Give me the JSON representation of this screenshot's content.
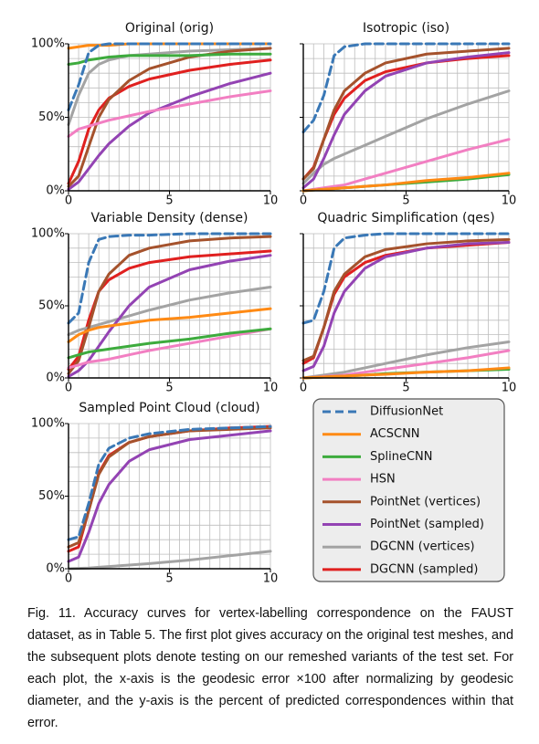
{
  "chart_data": [
    {
      "type": "line",
      "title": "Original (orig)",
      "x": [
        0,
        0.5,
        1,
        1.5,
        2,
        3,
        4,
        6,
        8,
        10
      ],
      "xlim": [
        0,
        10
      ],
      "xticks": [
        0,
        5,
        10
      ],
      "ylim": [
        0,
        100
      ],
      "yticks": [
        {
          "value": 0,
          "label": "0%"
        },
        {
          "value": 50,
          "label": "50%"
        },
        {
          "value": 100,
          "label": "100%"
        }
      ],
      "grid": true,
      "minor_grid": {
        "x": 0.5,
        "y": 10
      },
      "series": [
        {
          "name": "DiffusionNet",
          "color": "#3a78b6",
          "dash": true,
          "values": [
            55,
            72,
            94,
            99,
            100,
            100,
            100,
            100,
            100,
            100
          ]
        },
        {
          "name": "ACSCNN",
          "color": "#ff8a14",
          "values": [
            97,
            98,
            99,
            99,
            99,
            100,
            100,
            100,
            100,
            100
          ]
        },
        {
          "name": "SplineCNN",
          "color": "#3dab3d",
          "values": [
            86,
            87,
            89,
            90,
            91,
            92,
            92,
            92,
            93,
            93
          ]
        },
        {
          "name": "HSN",
          "color": "#f27fc2",
          "values": [
            37,
            42,
            44,
            46,
            48,
            51,
            54,
            59,
            64,
            68
          ]
        },
        {
          "name": "PointNet (vertices)",
          "color": "#a5522c",
          "values": [
            3,
            10,
            30,
            50,
            62,
            75,
            83,
            91,
            95,
            97
          ]
        },
        {
          "name": "PointNet (sampled)",
          "color": "#9343b3",
          "values": [
            1,
            6,
            15,
            24,
            32,
            44,
            53,
            64,
            73,
            80
          ]
        },
        {
          "name": "DGCNN (vertices)",
          "color": "#a3a3a3",
          "values": [
            45,
            65,
            80,
            86,
            89,
            92,
            93,
            95,
            96,
            97
          ]
        },
        {
          "name": "DGCNN (sampled)",
          "color": "#e0201f",
          "values": [
            5,
            20,
            42,
            55,
            63,
            71,
            76,
            82,
            86,
            89
          ]
        }
      ]
    },
    {
      "type": "line",
      "title": "Isotropic (iso)",
      "x": [
        0,
        0.5,
        1,
        1.5,
        2,
        3,
        4,
        6,
        8,
        10
      ],
      "xlim": [
        0,
        10
      ],
      "xticks": [
        0,
        5,
        10
      ],
      "ylim": [
        0,
        100
      ],
      "yticks": [
        0,
        50,
        100
      ],
      "grid": true,
      "minor_grid": {
        "x": 0.5,
        "y": 10
      },
      "ytick_labels": false,
      "series": [
        {
          "name": "DiffusionNet",
          "color": "#3a78b6",
          "dash": true,
          "values": [
            40,
            48,
            65,
            92,
            98,
            100,
            100,
            100,
            100,
            100
          ]
        },
        {
          "name": "ACSCNN",
          "color": "#ff8a14",
          "values": [
            0,
            0.5,
            1,
            1.5,
            2,
            3,
            4,
            7,
            9,
            12
          ]
        },
        {
          "name": "SplineCNN",
          "color": "#3dab3d",
          "values": [
            0,
            0.5,
            1,
            1.5,
            2,
            3,
            4,
            6,
            8,
            11
          ]
        },
        {
          "name": "HSN",
          "color": "#f27fc2",
          "values": [
            0,
            1,
            2,
            3,
            4,
            8,
            12,
            20,
            28,
            35
          ]
        },
        {
          "name": "PointNet (vertices)",
          "color": "#a5522c",
          "values": [
            8,
            15,
            35,
            55,
            68,
            80,
            87,
            93,
            95,
            97
          ]
        },
        {
          "name": "PointNet (sampled)",
          "color": "#9343b3",
          "values": [
            2,
            8,
            22,
            38,
            52,
            68,
            78,
            87,
            91,
            94
          ]
        },
        {
          "name": "DGCNN (vertices)",
          "color": "#a3a3a3",
          "values": [
            5,
            12,
            18,
            22,
            25,
            31,
            37,
            49,
            59,
            68
          ]
        },
        {
          "name": "DGCNN (sampled)",
          "color": "#e0201f",
          "values": [
            8,
            16,
            35,
            52,
            63,
            75,
            81,
            87,
            90,
            92
          ]
        }
      ]
    },
    {
      "type": "line",
      "title": "Variable Density (dense)",
      "x": [
        0,
        0.5,
        1,
        1.5,
        2,
        3,
        4,
        6,
        8,
        10
      ],
      "xlim": [
        0,
        10
      ],
      "xticks": [
        0,
        5,
        10
      ],
      "ylim": [
        0,
        100
      ],
      "yticks": [
        {
          "value": 0,
          "label": "0%"
        },
        {
          "value": 50,
          "label": "50%"
        },
        {
          "value": 100,
          "label": "100%"
        }
      ],
      "grid": true,
      "minor_grid": {
        "x": 0.5,
        "y": 10
      },
      "series": [
        {
          "name": "DiffusionNet",
          "color": "#3a78b6",
          "dash": true,
          "values": [
            38,
            45,
            80,
            96,
            98,
            99,
            99,
            100,
            100,
            100
          ]
        },
        {
          "name": "ACSCNN",
          "color": "#ff8a14",
          "values": [
            25,
            30,
            33,
            35,
            36,
            38,
            40,
            42,
            45,
            48
          ]
        },
        {
          "name": "SplineCNN",
          "color": "#3dab3d",
          "values": [
            14,
            16,
            18,
            19,
            20,
            22,
            24,
            27,
            31,
            34
          ]
        },
        {
          "name": "HSN",
          "color": "#f27fc2",
          "values": [
            7,
            9,
            11,
            12,
            13,
            16,
            19,
            24,
            29,
            34
          ]
        },
        {
          "name": "PointNet (vertices)",
          "color": "#a5522c",
          "values": [
            3,
            12,
            35,
            60,
            72,
            85,
            90,
            95,
            97,
            98
          ]
        },
        {
          "name": "PointNet (sampled)",
          "color": "#9343b3",
          "values": [
            1,
            5,
            12,
            22,
            32,
            50,
            63,
            75,
            81,
            85
          ]
        },
        {
          "name": "DGCNN (vertices)",
          "color": "#a3a3a3",
          "values": [
            30,
            33,
            35,
            37,
            39,
            43,
            47,
            54,
            59,
            63
          ]
        },
        {
          "name": "DGCNN (sampled)",
          "color": "#e0201f",
          "values": [
            6,
            15,
            40,
            60,
            68,
            76,
            80,
            84,
            86,
            88
          ]
        }
      ]
    },
    {
      "type": "line",
      "title": "Quadric Simplification (qes)",
      "x": [
        0,
        0.5,
        1,
        1.5,
        2,
        3,
        4,
        6,
        8,
        10
      ],
      "xlim": [
        0,
        10
      ],
      "xticks": [
        0,
        5,
        10
      ],
      "ylim": [
        0,
        100
      ],
      "yticks": [
        0,
        50,
        100
      ],
      "grid": true,
      "minor_grid": {
        "x": 0.5,
        "y": 10
      },
      "ytick_labels": false,
      "series": [
        {
          "name": "DiffusionNet",
          "color": "#3a78b6",
          "dash": true,
          "values": [
            38,
            40,
            60,
            90,
            97,
            99,
            100,
            100,
            100,
            100
          ]
        },
        {
          "name": "ACSCNN",
          "color": "#ff8a14",
          "values": [
            0,
            0.3,
            0.6,
            1,
            1.3,
            2,
            2.5,
            4,
            5,
            7
          ]
        },
        {
          "name": "SplineCNN",
          "color": "#3dab3d",
          "values": [
            0,
            0.3,
            0.6,
            1,
            1.3,
            2,
            3,
            4,
            5,
            6
          ]
        },
        {
          "name": "HSN",
          "color": "#f27fc2",
          "values": [
            0,
            0.5,
            1,
            1.5,
            2,
            4,
            6,
            10,
            14,
            19
          ]
        },
        {
          "name": "PointNet (vertices)",
          "color": "#a5522c",
          "values": [
            12,
            15,
            35,
            60,
            72,
            84,
            89,
            93,
            95,
            96
          ]
        },
        {
          "name": "PointNet (sampled)",
          "color": "#9343b3",
          "values": [
            5,
            8,
            22,
            45,
            60,
            76,
            84,
            90,
            93,
            94
          ]
        },
        {
          "name": "DGCNN (vertices)",
          "color": "#a3a3a3",
          "values": [
            0,
            1,
            2,
            3,
            4,
            7,
            10,
            16,
            21,
            25
          ]
        },
        {
          "name": "DGCNN (sampled)",
          "color": "#e0201f",
          "values": [
            10,
            14,
            35,
            58,
            70,
            80,
            85,
            90,
            92,
            94
          ]
        }
      ]
    },
    {
      "type": "line",
      "title": "Sampled Point Cloud (cloud)",
      "x": [
        0,
        0.5,
        1,
        1.5,
        2,
        3,
        4,
        6,
        8,
        10
      ],
      "xlim": [
        0,
        10
      ],
      "xticks": [
        0,
        5,
        10
      ],
      "ylim": [
        0,
        100
      ],
      "yticks": [
        {
          "value": 0,
          "label": "0%"
        },
        {
          "value": 50,
          "label": "50%"
        },
        {
          "value": 100,
          "label": "100%"
        }
      ],
      "grid": true,
      "minor_grid": {
        "x": 0.5,
        "y": 10
      },
      "series": [
        {
          "name": "DiffusionNet",
          "color": "#3a78b6",
          "dash": true,
          "values": [
            20,
            22,
            45,
            72,
            83,
            90,
            93,
            96,
            97,
            98
          ]
        },
        {
          "name": "PointNet (vertices)",
          "color": "#a5522c",
          "values": [
            15,
            18,
            40,
            65,
            77,
            87,
            91,
            95,
            96,
            97
          ]
        },
        {
          "name": "PointNet (sampled)",
          "color": "#9343b3",
          "values": [
            5,
            8,
            25,
            45,
            58,
            74,
            82,
            89,
            92,
            95
          ]
        },
        {
          "name": "DGCNN (vertices)",
          "color": "#a3a3a3",
          "values": [
            0,
            0.2,
            0.5,
            1,
            1.5,
            2.5,
            3.5,
            6,
            9,
            12
          ]
        },
        {
          "name": "DGCNN (sampled)",
          "color": "#e0201f",
          "values": [
            12,
            15,
            40,
            66,
            78,
            87,
            91,
            95,
            97,
            98
          ]
        }
      ]
    }
  ],
  "caption": "Fig. 11.  Accuracy curves for vertex-labelling correspondence on the FAUST dataset, as in Table 5. The first plot gives accuracy on the original test meshes, and the subsequent plots denote testing on our remeshed variants of the test set. For each plot, the x-axis is the geodesic error ×100 after normalizing by geodesic diameter, and the y-axis is the percent of predicted correspondences within that error."
}
